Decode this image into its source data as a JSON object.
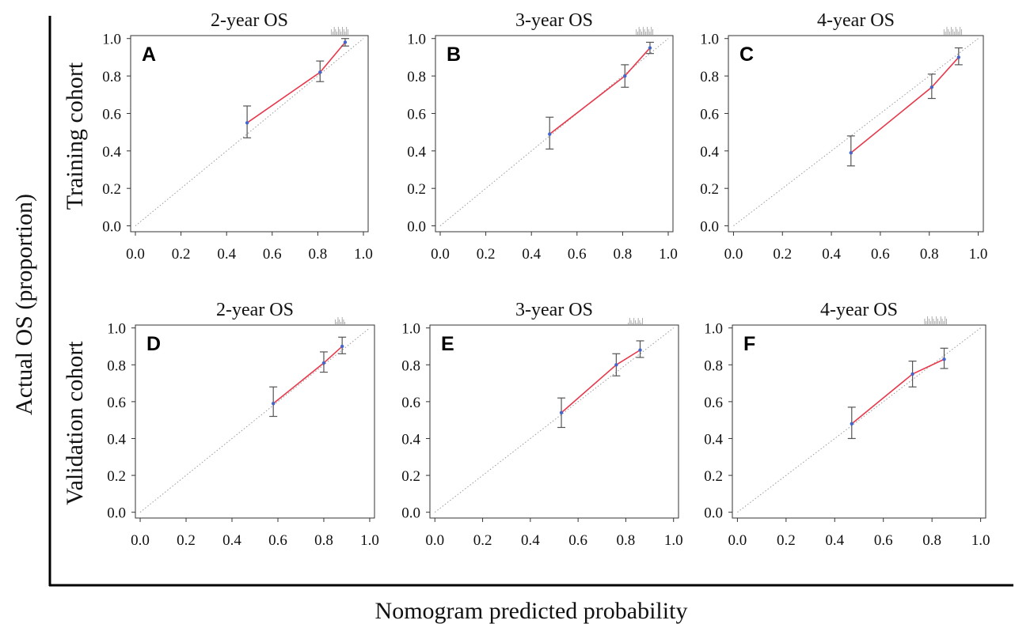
{
  "figure": {
    "y_label": "Actual OS (proportion)",
    "x_label": "Nomogram predicted probability",
    "row_labels": [
      "Training cohort",
      "Validation cohort"
    ],
    "colors": {
      "calibration_line": "#e8384b",
      "error_bar": "#555555",
      "diagonal": "#9a9a9a",
      "axis": "#333333"
    }
  },
  "chart_data": [
    {
      "type": "line",
      "panel": "A",
      "title": "2-year OS",
      "xlim": [
        0,
        1
      ],
      "ylim": [
        0,
        1
      ],
      "ticks": [
        "0.0",
        "0.2",
        "0.4",
        "0.6",
        "0.8",
        "1.0"
      ],
      "reference_line": "ideal diagonal",
      "points": [
        {
          "x": 0.49,
          "y": 0.55,
          "lo": 0.47,
          "hi": 0.64
        },
        {
          "x": 0.81,
          "y": 0.82,
          "lo": 0.77,
          "hi": 0.88
        },
        {
          "x": 0.92,
          "y": 0.98,
          "lo": 0.96,
          "hi": 1.0
        }
      ]
    },
    {
      "type": "line",
      "panel": "B",
      "title": "3-year OS",
      "xlim": [
        0,
        1
      ],
      "ylim": [
        0,
        1
      ],
      "ticks": [
        "0.0",
        "0.2",
        "0.4",
        "0.6",
        "0.8",
        "1.0"
      ],
      "reference_line": "ideal diagonal",
      "points": [
        {
          "x": 0.48,
          "y": 0.49,
          "lo": 0.41,
          "hi": 0.58
        },
        {
          "x": 0.81,
          "y": 0.8,
          "lo": 0.74,
          "hi": 0.86
        },
        {
          "x": 0.92,
          "y": 0.95,
          "lo": 0.92,
          "hi": 0.98
        }
      ]
    },
    {
      "type": "line",
      "panel": "C",
      "title": "4-year OS",
      "xlim": [
        0,
        1
      ],
      "ylim": [
        0,
        1
      ],
      "ticks": [
        "0.0",
        "0.2",
        "0.4",
        "0.6",
        "0.8",
        "1.0"
      ],
      "reference_line": "ideal diagonal",
      "points": [
        {
          "x": 0.48,
          "y": 0.39,
          "lo": 0.32,
          "hi": 0.48
        },
        {
          "x": 0.81,
          "y": 0.74,
          "lo": 0.68,
          "hi": 0.81
        },
        {
          "x": 0.92,
          "y": 0.9,
          "lo": 0.86,
          "hi": 0.95
        }
      ]
    },
    {
      "type": "line",
      "panel": "D",
      "title": "2-year OS",
      "xlim": [
        0,
        1
      ],
      "ylim": [
        0,
        1
      ],
      "ticks": [
        "0.0",
        "0.2",
        "0.4",
        "0.6",
        "0.8",
        "1.0"
      ],
      "reference_line": "ideal diagonal",
      "points": [
        {
          "x": 0.58,
          "y": 0.59,
          "lo": 0.52,
          "hi": 0.68
        },
        {
          "x": 0.8,
          "y": 0.81,
          "lo": 0.76,
          "hi": 0.87
        },
        {
          "x": 0.88,
          "y": 0.9,
          "lo": 0.86,
          "hi": 0.95
        }
      ]
    },
    {
      "type": "line",
      "panel": "E",
      "title": "3-year OS",
      "xlim": [
        0,
        1
      ],
      "ylim": [
        0,
        1
      ],
      "ticks": [
        "0.0",
        "0.2",
        "0.4",
        "0.6",
        "0.8",
        "1.0"
      ],
      "reference_line": "ideal diagonal",
      "points": [
        {
          "x": 0.53,
          "y": 0.54,
          "lo": 0.46,
          "hi": 0.62
        },
        {
          "x": 0.76,
          "y": 0.8,
          "lo": 0.74,
          "hi": 0.86
        },
        {
          "x": 0.86,
          "y": 0.88,
          "lo": 0.84,
          "hi": 0.93
        }
      ]
    },
    {
      "type": "line",
      "panel": "F",
      "title": "4-year OS",
      "xlim": [
        0,
        1
      ],
      "ylim": [
        0,
        1
      ],
      "ticks": [
        "0.0",
        "0.2",
        "0.4",
        "0.6",
        "0.8",
        "1.0"
      ],
      "reference_line": "ideal diagonal",
      "points": [
        {
          "x": 0.47,
          "y": 0.48,
          "lo": 0.4,
          "hi": 0.57
        },
        {
          "x": 0.72,
          "y": 0.75,
          "lo": 0.68,
          "hi": 0.82
        },
        {
          "x": 0.85,
          "y": 0.83,
          "lo": 0.78,
          "hi": 0.89
        }
      ]
    }
  ]
}
